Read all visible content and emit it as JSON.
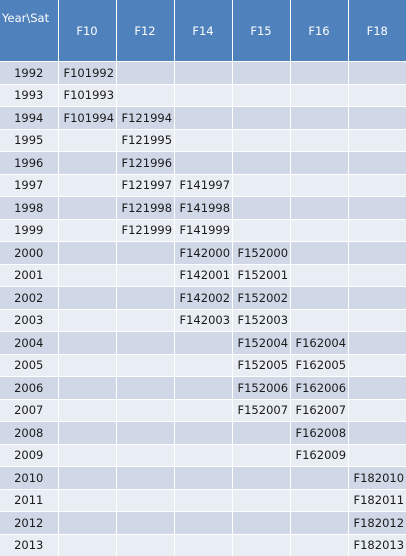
{
  "table": {
    "headers": [
      "Year\\Sat",
      "F10",
      "F12",
      "F14",
      "F15",
      "F16",
      "F18"
    ],
    "rows": [
      [
        "1992",
        "F101992",
        "",
        "",
        "",
        "",
        ""
      ],
      [
        "1993",
        "F101993",
        "",
        "",
        "",
        "",
        ""
      ],
      [
        "1994",
        "F101994",
        "F121994",
        "",
        "",
        "",
        ""
      ],
      [
        "1995",
        "",
        "F121995",
        "",
        "",
        "",
        ""
      ],
      [
        "1996",
        "",
        "F121996",
        "",
        "",
        "",
        ""
      ],
      [
        "1997",
        "",
        "F121997",
        "F141997",
        "",
        "",
        ""
      ],
      [
        "1998",
        "",
        "F121998",
        "F141998",
        "",
        "",
        ""
      ],
      [
        "1999",
        "",
        "F121999",
        "F141999",
        "",
        "",
        ""
      ],
      [
        "2000",
        "",
        "",
        "F142000",
        "F152000",
        "",
        ""
      ],
      [
        "2001",
        "",
        "",
        "F142001",
        "F152001",
        "",
        ""
      ],
      [
        "2002",
        "",
        "",
        "F142002",
        "F152002",
        "",
        ""
      ],
      [
        "2003",
        "",
        "",
        "F142003",
        "F152003",
        "",
        ""
      ],
      [
        "2004",
        "",
        "",
        "",
        "F152004",
        "F162004",
        ""
      ],
      [
        "2005",
        "",
        "",
        "",
        "F152005",
        "F162005",
        ""
      ],
      [
        "2006",
        "",
        "",
        "",
        "F152006",
        "F162006",
        ""
      ],
      [
        "2007",
        "",
        "",
        "",
        "F152007",
        "F162007",
        ""
      ],
      [
        "2008",
        "",
        "",
        "",
        "",
        "F162008",
        ""
      ],
      [
        "2009",
        "",
        "",
        "",
        "",
        "F162009",
        ""
      ],
      [
        "2010",
        "",
        "",
        "",
        "",
        "",
        "F182010"
      ],
      [
        "2011",
        "",
        "",
        "",
        "",
        "",
        "F182011"
      ],
      [
        "2012",
        "",
        "",
        "",
        "",
        "",
        "F182012"
      ],
      [
        "2013",
        "",
        "",
        "",
        "",
        "",
        "F182013"
      ]
    ]
  },
  "colors": {
    "header_bg": "#4f81bd",
    "row_odd_bg": "#d0d8e8",
    "row_even_bg": "#e9edf4"
  }
}
